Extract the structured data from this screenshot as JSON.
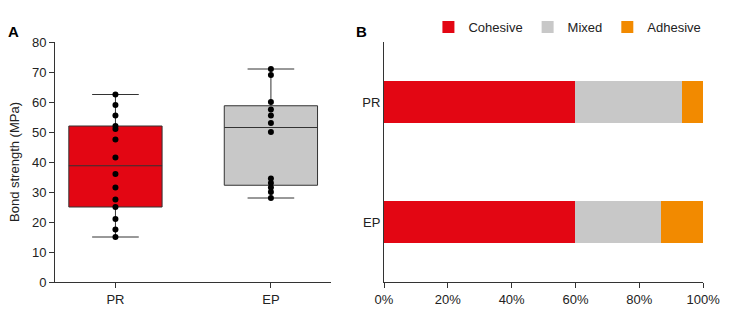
{
  "chart_data": [
    {
      "type": "box",
      "title": "A",
      "categories": [
        "PR",
        "EP"
      ],
      "values": [
        [
          62.5,
          59,
          55.5,
          52,
          51,
          47.5,
          41.5,
          36,
          31.5,
          27.5,
          25,
          21,
          17.5,
          15
        ],
        [
          71,
          69,
          60,
          57.5,
          55.5,
          53,
          50,
          34.5,
          33,
          31.5,
          30,
          28
        ]
      ],
      "colors": [
        "#e30613",
        "#c8c8c8"
      ],
      "y_label": "Bond strength (MPa)",
      "ylim": [
        0,
        80
      ],
      "yticks": [
        0,
        10,
        20,
        30,
        40,
        50,
        60,
        70,
        80
      ],
      "grid": false
    },
    {
      "type": "bar",
      "title": "B",
      "orientation": "horizontal",
      "stacked": true,
      "categories": [
        "PR",
        "EP"
      ],
      "series": [
        {
          "name": "Cohesive",
          "color": "#e30613",
          "values": [
            60,
            60
          ]
        },
        {
          "name": "Mixed",
          "color": "#c8c8c8",
          "values": [
            33.3,
            26.7
          ]
        },
        {
          "name": "Adhesive",
          "color": "#f28a00",
          "values": [
            6.7,
            13.3
          ]
        }
      ],
      "xlim": [
        0,
        100
      ],
      "xticks": [
        {
          "value": 0,
          "label": "0%"
        },
        {
          "value": 20,
          "label": "20%"
        },
        {
          "value": 40,
          "label": "40%"
        },
        {
          "value": 60,
          "label": "60%"
        },
        {
          "value": 80,
          "label": "80%"
        },
        {
          "value": 100,
          "label": "100%"
        }
      ],
      "legend": "top",
      "grid": false
    }
  ]
}
